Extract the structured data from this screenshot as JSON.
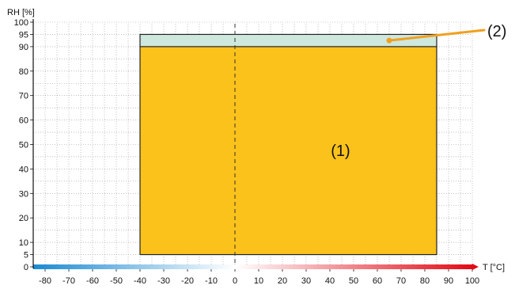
{
  "chart_data": {
    "type": "area",
    "xlabel": "T [°C]",
    "ylabel": "RH [%]",
    "xlim": [
      -85,
      100
    ],
    "ylim": [
      0,
      100
    ],
    "grid": true,
    "x_ticks": [
      -80,
      -70,
      -60,
      -50,
      -40,
      -30,
      -20,
      -10,
      0,
      10,
      20,
      30,
      40,
      50,
      60,
      70,
      80,
      90,
      100
    ],
    "y_ticks": [
      0,
      5,
      10,
      20,
      30,
      40,
      50,
      60,
      70,
      80,
      90,
      95,
      100
    ],
    "regions": [
      {
        "label": "(1)",
        "x": [
          -40,
          85
        ],
        "y": [
          5,
          90
        ],
        "color": "#fbc21c"
      },
      {
        "label": "(2)",
        "x": [
          -40,
          85
        ],
        "y": [
          90,
          95
        ],
        "color": "#cfe8de"
      }
    ],
    "reference_line_x": 0,
    "temperature_colorbar": {
      "cold_color": "#1a8ad4",
      "neutral_color": "#ffffff",
      "hot_color": "#e30b17"
    },
    "callout_color": "#f0a020"
  }
}
